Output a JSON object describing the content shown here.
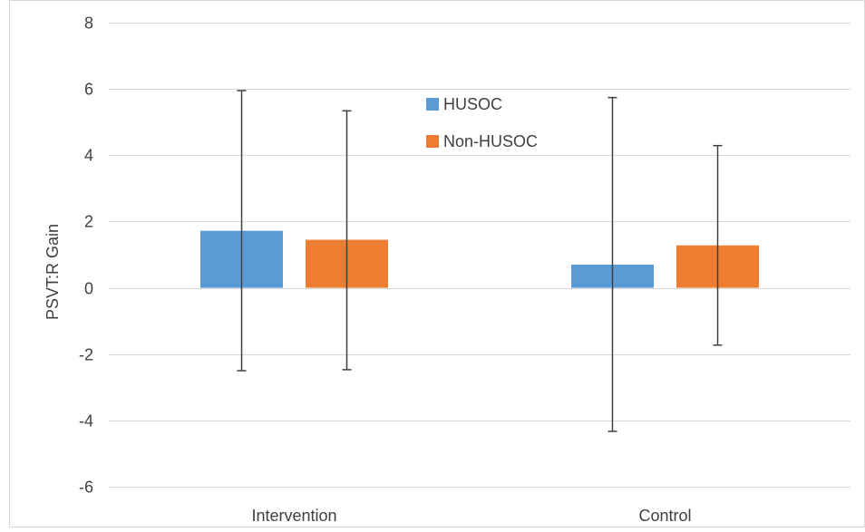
{
  "chart_data": {
    "type": "bar",
    "title": "",
    "xlabel": "",
    "ylabel": "PSVT:R Gain",
    "categories": [
      "Intervention",
      "Control"
    ],
    "series": [
      {
        "name": "HUSOC",
        "color": "#5b9bd5",
        "values": [
          1.72,
          0.7
        ],
        "error_low": [
          -2.5,
          -4.33
        ],
        "error_high": [
          5.95,
          5.74
        ]
      },
      {
        "name": "Non-HUSOC",
        "color": "#ed7d31",
        "values": [
          1.45,
          1.28
        ],
        "error_low": [
          -2.47,
          -1.73
        ],
        "error_high": [
          5.34,
          4.29
        ]
      }
    ],
    "ylim": [
      -6,
      8
    ],
    "yticks": [
      -6,
      -4,
      -2,
      0,
      2,
      4,
      6,
      8
    ],
    "grid": true,
    "legend_position": "top-center"
  }
}
